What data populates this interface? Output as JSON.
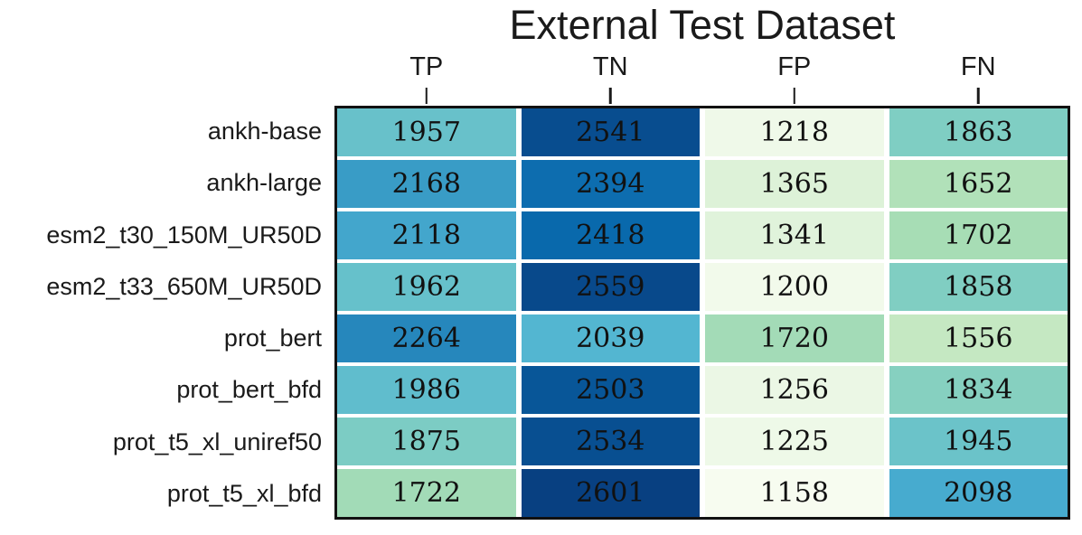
{
  "title": "External Test Dataset",
  "colors": {
    "background": "#ffffff",
    "frame": "#111111",
    "text": "#1a1a1a",
    "cell_text": "#111111",
    "grid_gap": "#ffffff"
  },
  "chart_data": {
    "type": "heatmap",
    "title": "External Test Dataset",
    "columns": [
      "TP",
      "TN",
      "FP",
      "FN"
    ],
    "rows": [
      "ankh-base",
      "ankh-large",
      "esm2_t30_150M_UR50D",
      "esm2_t33_650M_UR50D",
      "prot_bert",
      "prot_bert_bfd",
      "prot_t5_xl_uniref50",
      "prot_t5_xl_bfd"
    ],
    "values": [
      [
        1957,
        2541,
        1218,
        1863
      ],
      [
        2168,
        2394,
        1365,
        1652
      ],
      [
        2118,
        2418,
        1341,
        1702
      ],
      [
        1962,
        2559,
        1200,
        1858
      ],
      [
        2264,
        2039,
        1720,
        1556
      ],
      [
        1986,
        2503,
        1256,
        1834
      ],
      [
        1875,
        2534,
        1225,
        1945
      ],
      [
        1722,
        2601,
        1158,
        2098
      ]
    ],
    "cell_colors": [
      [
        "#68c1ca",
        "#084d8f",
        "#eff9e9",
        "#7fcec3"
      ],
      [
        "#399cc6",
        "#0d6daf",
        "#ddf2d8",
        "#b1e1b9"
      ],
      [
        "#43a6cc",
        "#0969ac",
        "#e0f3db",
        "#a7ddb5"
      ],
      [
        "#66c1cb",
        "#08498b",
        "#f2faeb",
        "#80cec2"
      ],
      [
        "#2687bc",
        "#53b6d1",
        "#a3dbb7",
        "#c5e8c2"
      ],
      [
        "#60bdcd",
        "#085698",
        "#ebf7e5",
        "#86d0c0"
      ],
      [
        "#7cccc4",
        "#084f91",
        "#eef9e8",
        "#6bc3c9"
      ],
      [
        "#a2dbb7",
        "#084081",
        "#f7fcf0",
        "#47abcf"
      ]
    ],
    "vmin": 1158,
    "vmax": 2601,
    "colormap": "GnBu",
    "legend": "none",
    "annotations": "cell values printed in black"
  }
}
